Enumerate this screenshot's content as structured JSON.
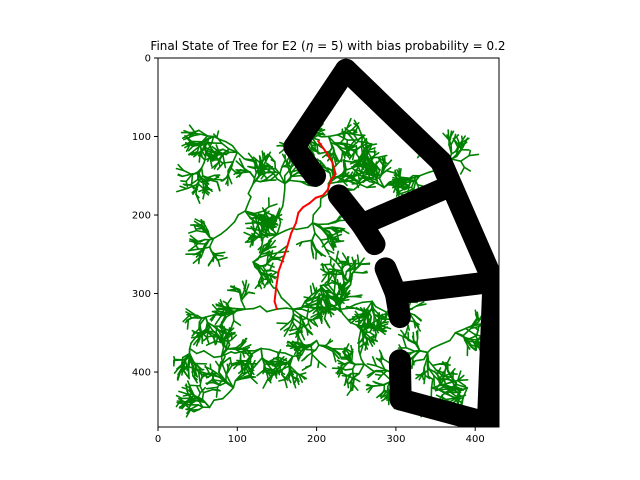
{
  "chart_data": {
    "type": "scatter",
    "title": "Final State of Tree for E2 (η = 5) with bias probability = 0.2",
    "title_parts": {
      "before": "Final State of Tree for E2 (",
      "symbol": "η",
      "after": " = 5) with bias probability = 0.2"
    },
    "xlabel": "",
    "ylabel": "",
    "xlim": [
      0,
      430
    ],
    "ylim": [
      470,
      0
    ],
    "x_ticks": [
      0,
      100,
      200,
      300,
      400
    ],
    "y_ticks": [
      0,
      100,
      200,
      300,
      400
    ],
    "grid": false,
    "colors": {
      "obstacle": "#000000",
      "tree": "#008000",
      "path": "#ff0000"
    },
    "obstacles": [
      {
        "from": [
          237,
          15
        ],
        "to": [
          357,
          132
        ]
      },
      {
        "from": [
          237,
          15
        ],
        "to": [
          172,
          113
        ]
      },
      {
        "from": [
          172,
          113
        ],
        "to": [
          198,
          150
        ]
      },
      {
        "from": [
          357,
          132
        ],
        "to": [
          423,
          285
        ]
      },
      {
        "from": [
          423,
          285
        ],
        "to": [
          416,
          465
        ]
      },
      {
        "from": [
          416,
          465
        ],
        "to": [
          306,
          435
        ]
      },
      {
        "from": [
          306,
          435
        ],
        "to": [
          305,
          385
        ]
      },
      {
        "from": [
          305,
          330
        ],
        "to": [
          300,
          300
        ]
      },
      {
        "from": [
          300,
          300
        ],
        "to": [
          423,
          285
        ]
      },
      {
        "from": [
          300,
          300
        ],
        "to": [
          287,
          268
        ]
      },
      {
        "from": [
          273,
          237
        ],
        "to": [
          257,
          212
        ]
      },
      {
        "from": [
          257,
          212
        ],
        "to": [
          357,
          168
        ]
      },
      {
        "from": [
          257,
          212
        ],
        "to": [
          228,
          175
        ]
      }
    ],
    "path": [
      [
        202,
        106
      ],
      [
        212,
        120
      ],
      [
        220,
        133
      ],
      [
        224,
        148
      ],
      [
        218,
        155
      ],
      [
        214,
        168
      ],
      [
        208,
        175
      ],
      [
        199,
        178
      ],
      [
        191,
        185
      ],
      [
        183,
        190
      ],
      [
        177,
        197
      ],
      [
        174,
        210
      ],
      [
        168,
        223
      ],
      [
        163,
        240
      ],
      [
        158,
        255
      ],
      [
        152,
        272
      ],
      [
        149,
        292
      ],
      [
        147,
        310
      ],
      [
        150,
        320
      ]
    ],
    "tree_hubs": [
      [
        160,
        160
      ],
      [
        150,
        225
      ],
      [
        195,
        210
      ],
      [
        215,
        160
      ],
      [
        245,
        140
      ],
      [
        100,
        120
      ],
      [
        70,
        100
      ],
      [
        55,
        140
      ],
      [
        110,
        195
      ],
      [
        70,
        230
      ],
      [
        120,
        260
      ],
      [
        175,
        90
      ],
      [
        215,
        100
      ],
      [
        270,
        110
      ],
      [
        285,
        165
      ],
      [
        170,
        320
      ],
      [
        230,
        320
      ],
      [
        270,
        310
      ],
      [
        300,
        335
      ],
      [
        110,
        320
      ],
      [
        60,
        330
      ],
      [
        40,
        370
      ],
      [
        80,
        380
      ],
      [
        95,
        420
      ],
      [
        65,
        445
      ],
      [
        130,
        370
      ],
      [
        170,
        380
      ],
      [
        200,
        360
      ],
      [
        250,
        340
      ],
      [
        260,
        390
      ],
      [
        300,
        410
      ],
      [
        340,
        375
      ],
      [
        375,
        350
      ],
      [
        345,
        420
      ],
      [
        390,
        420
      ],
      [
        205,
        290
      ],
      [
        240,
        285
      ],
      [
        330,
        150
      ],
      [
        365,
        135
      ],
      [
        120,
        160
      ]
    ]
  }
}
